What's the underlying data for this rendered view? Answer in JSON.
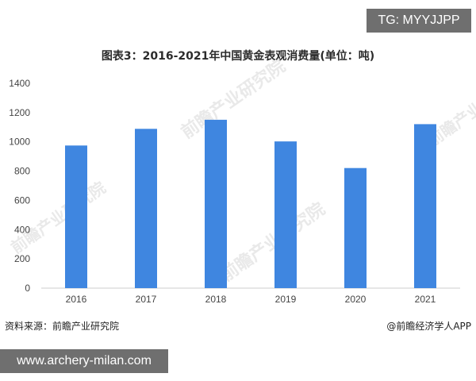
{
  "badge_top": "TG: MYYJJPP",
  "badge_bottom": "www.archery-milan.com",
  "source": "资料来源：前瞻产业研究院",
  "brand": "@前瞻经济学人APP",
  "watermark": "前瞻产业研究院",
  "colors": {
    "bar": "#3f86e0",
    "axis": "#cccccc"
  },
  "chart_data": {
    "type": "bar",
    "title": "图表3：2016-2021年中国黄金表观消费量(单位：吨)",
    "xlabel": "",
    "ylabel": "",
    "categories": [
      "2016",
      "2017",
      "2018",
      "2019",
      "2020",
      "2021"
    ],
    "values": [
      975,
      1089,
      1151,
      1003,
      821,
      1121
    ],
    "ylim": [
      0,
      1400
    ],
    "yticks": [
      0,
      200,
      400,
      600,
      800,
      1000,
      1200,
      1400
    ],
    "grid": false
  }
}
